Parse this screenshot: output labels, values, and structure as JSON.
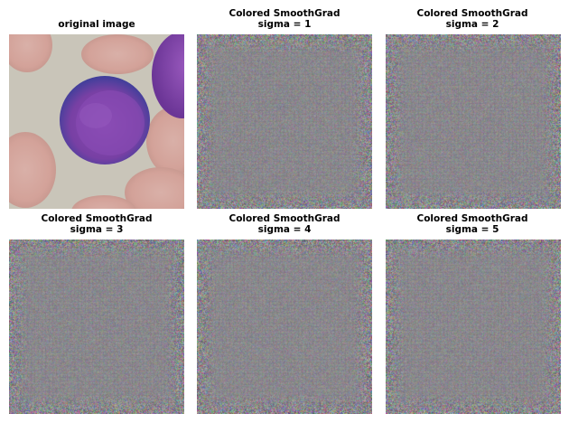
{
  "panels": [
    {
      "title": "original image",
      "subtitle": ""
    },
    {
      "title": "Colored SmoothGrad",
      "subtitle": "sigma = 1"
    },
    {
      "title": "Colored SmoothGrad",
      "subtitle": "sigma = 2"
    },
    {
      "title": "Colored SmoothGrad",
      "subtitle": "sigma = 3"
    },
    {
      "title": "Colored SmoothGrad",
      "subtitle": "sigma = 4"
    },
    {
      "title": "Colored SmoothGrad",
      "subtitle": "sigma = 5"
    }
  ],
  "colors": {
    "background": "#c9c4b8",
    "red_cell": "#d7a8a0",
    "nucleus": "#7a3fa3",
    "nucleus_dark": "#5c2f85",
    "noise_base": "#8d8c8e"
  }
}
